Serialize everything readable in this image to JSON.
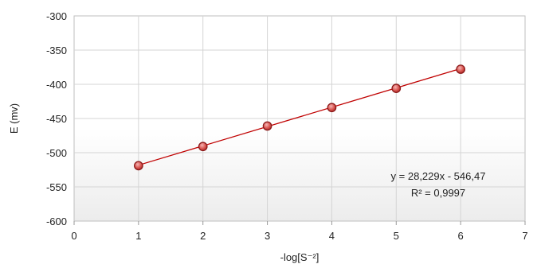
{
  "chart_data": {
    "type": "scatter",
    "xlabel": "-log[S⁻²]",
    "ylabel": "E (mv)",
    "xlim": [
      0,
      7
    ],
    "ylim": [
      -600,
      -300
    ],
    "xticks": [
      "0",
      "1",
      "2",
      "3",
      "4",
      "5",
      "6",
      "7"
    ],
    "yticks": [
      "-300",
      "-350",
      "-400",
      "-450",
      "-500",
      "-550",
      "-600"
    ],
    "grid": "horizontal",
    "series": [
      {
        "x": [
          1,
          2,
          3,
          4,
          5,
          6
        ],
        "y": [
          -519,
          -491,
          -461,
          -434,
          -406,
          -378
        ],
        "marker": "circle",
        "color": "#c0504d"
      }
    ],
    "trendline": {
      "type": "linear",
      "slope": 28.229,
      "intercept": -546.47,
      "x_range": [
        1,
        6
      ],
      "color": "#c00000"
    },
    "annotations": {
      "equation": "y = 28,229x - 546,47",
      "r_squared": "R² = 0,9997"
    }
  }
}
